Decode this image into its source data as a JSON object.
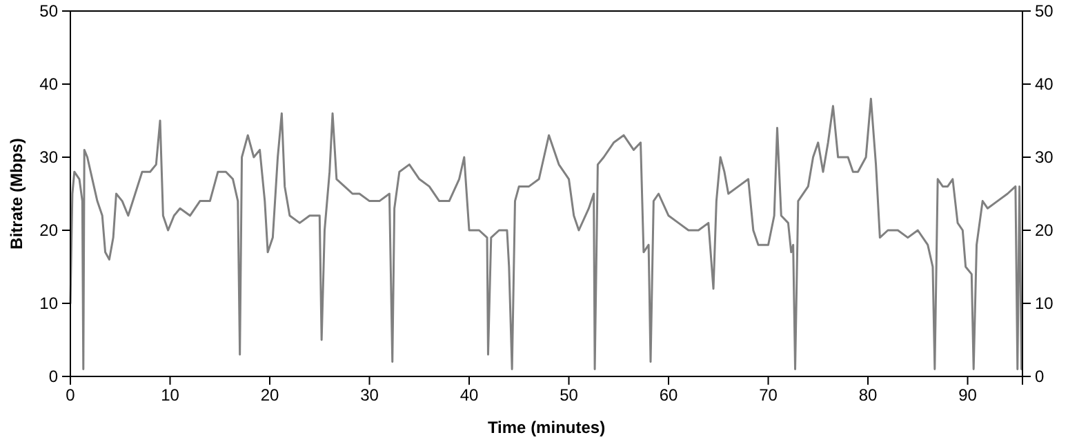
{
  "chart_data": {
    "type": "line",
    "xlabel": "Time (minutes)",
    "ylabel": "Bitrate (Mbps)",
    "xlim": [
      0,
      95.5
    ],
    "xticks": [
      0,
      10,
      20,
      30,
      40,
      50,
      60,
      70,
      80,
      90
    ],
    "ylim": [
      0,
      50
    ],
    "yticks": [
      0,
      10,
      20,
      30,
      40,
      50
    ],
    "y2lim": [
      0,
      50
    ],
    "y2ticks": [
      0,
      10,
      20,
      30,
      40,
      50
    ],
    "marker": "none",
    "line_style": "solid",
    "series": [
      {
        "color": "#808080",
        "x": [
          0,
          0.2,
          0.4,
          0.9,
          1.2,
          1.3,
          1.4,
          1.7,
          2.2,
          2.7,
          3.2,
          3.5,
          3.9,
          4.3,
          4.6,
          5.2,
          5.8,
          6.5,
          7.2,
          8,
          8.6,
          9.0,
          9.3,
          9.8,
          10.4,
          11,
          12,
          13,
          14,
          14.8,
          15.6,
          16.3,
          16.8,
          17.0,
          17.2,
          17.8,
          18.4,
          19.0,
          19.5,
          19.8,
          20.3,
          20.8,
          21.2,
          21.5,
          22,
          23,
          24,
          25,
          25.2,
          25.5,
          26,
          26.3,
          26.7,
          27.5,
          28.3,
          29,
          30,
          31,
          32,
          32.3,
          32.5,
          33,
          34,
          35,
          36,
          37,
          38,
          39,
          39.5,
          39.8,
          40,
          41,
          41.8,
          41.9,
          42.2,
          43,
          43.8,
          44,
          44.3,
          44.6,
          45,
          46,
          47,
          47.5,
          48,
          49,
          50,
          50.5,
          51,
          52,
          52.5,
          52.6,
          52.9,
          53.5,
          54.5,
          55.5,
          56.5,
          57.2,
          57.5,
          58,
          58.2,
          58.5,
          59,
          60,
          61,
          62,
          63,
          64,
          64.5,
          64.8,
          65.2,
          65.6,
          66,
          67,
          68,
          68.5,
          69,
          70,
          70.6,
          70.9,
          71.3,
          72,
          72.3,
          72.5,
          72.7,
          73,
          74,
          74.5,
          75,
          75.5,
          76,
          76.5,
          77,
          78,
          78.5,
          79,
          79.8,
          80.3,
          80.8,
          81.2,
          82,
          83,
          84,
          85,
          86,
          86.5,
          86.7,
          87,
          87.5,
          88,
          88.5,
          89,
          89.5,
          89.8,
          90.4,
          90.6,
          90.9,
          91.5,
          92,
          93,
          94,
          94.8,
          95,
          95.2,
          95.4
        ],
        "values": [
          10,
          25,
          28,
          27,
          24,
          1,
          31,
          30,
          27,
          24,
          22,
          17,
          16,
          19,
          25,
          24,
          22,
          25,
          28,
          28,
          29,
          35,
          22,
          20,
          22,
          23,
          22,
          24,
          24,
          28,
          28,
          27,
          24,
          3,
          30,
          33,
          30,
          31,
          24,
          17,
          19,
          30,
          36,
          26,
          22,
          21,
          22,
          22,
          5,
          20,
          28,
          36,
          27,
          26,
          25,
          25,
          24,
          24,
          25,
          2,
          23,
          28,
          29,
          27,
          26,
          24,
          24,
          27,
          30,
          24,
          20,
          20,
          19,
          3,
          19,
          20,
          20,
          15,
          1,
          24,
          26,
          26,
          27,
          30,
          33,
          29,
          27,
          22,
          20,
          23,
          25,
          1,
          29,
          30,
          32,
          33,
          31,
          32,
          17,
          18,
          2,
          24,
          25,
          22,
          21,
          20,
          20,
          21,
          12,
          24,
          30,
          28,
          25,
          26,
          27,
          20,
          18,
          18,
          22,
          34,
          22,
          21,
          17,
          18,
          1,
          24,
          26,
          30,
          32,
          28,
          32,
          37,
          30,
          30,
          28,
          28,
          30,
          38,
          29,
          19,
          20,
          20,
          19,
          20,
          18,
          15,
          1,
          27,
          26,
          26,
          27,
          21,
          20,
          15,
          14,
          1,
          18,
          24,
          23,
          24,
          25,
          26,
          1,
          26,
          1
        ]
      }
    ]
  }
}
